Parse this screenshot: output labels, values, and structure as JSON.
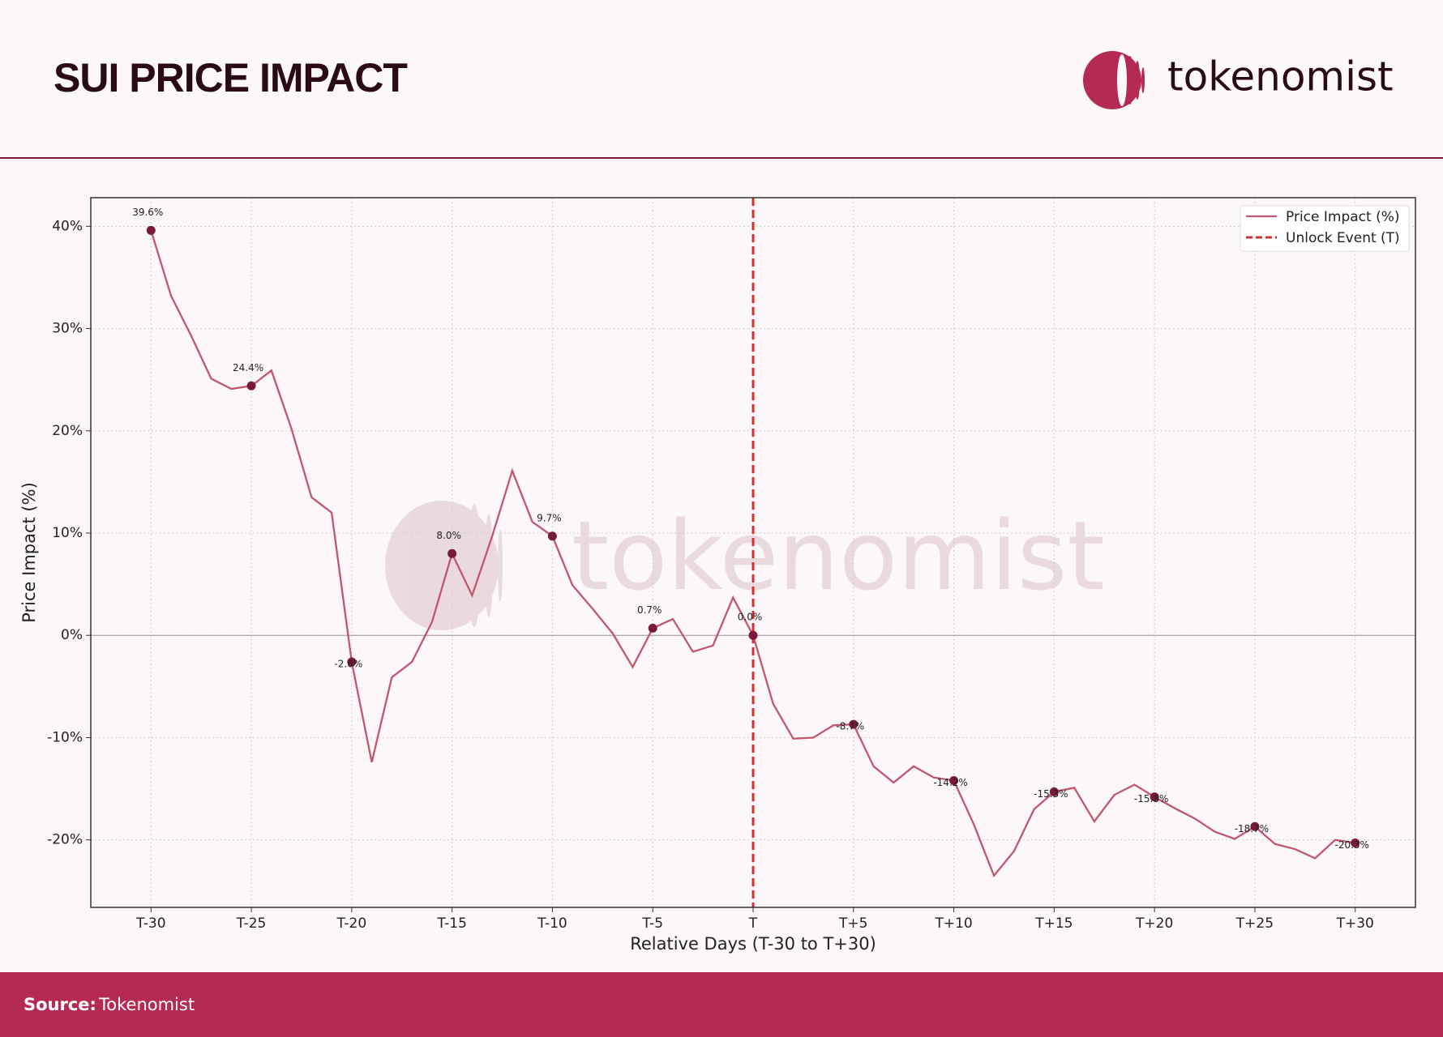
{
  "header": {
    "title": "SUI PRICE IMPACT",
    "logo": "tokenomist"
  },
  "footer": {
    "label": "Source:",
    "source": "Tokenomist"
  },
  "chart_data": {
    "type": "line",
    "watermark": "tokenomist",
    "x_label": "Relative Days (T-30 to T+30)",
    "y_label": "Price Impact (%)",
    "x": [
      -30,
      -29,
      -28,
      -27,
      -26,
      -25,
      -24,
      -23,
      -22,
      -21,
      -20,
      -19,
      -18,
      -17,
      -16,
      -15,
      -14,
      -13,
      -12,
      -11,
      -10,
      -9,
      -8,
      -7,
      -6,
      -5,
      -4,
      -3,
      -2,
      -1,
      0,
      1,
      2,
      3,
      4,
      5,
      6,
      7,
      8,
      9,
      10,
      11,
      12,
      13,
      14,
      15,
      16,
      17,
      18,
      19,
      20,
      21,
      22,
      23,
      24,
      25,
      26,
      27,
      28,
      29,
      30
    ],
    "series": [
      {
        "name": "Price Impact (%)",
        "color": "#c2566f",
        "marker_color": "#7a1a3a",
        "values": [
          39.6,
          33.2,
          29.3,
          25.1,
          24.1,
          24.4,
          25.9,
          20.2,
          13.5,
          12.0,
          -2.6,
          -12.4,
          -4.1,
          -2.6,
          1.3,
          8.0,
          3.9,
          9.7,
          16.1,
          11.1,
          9.7,
          4.9,
          2.6,
          0.2,
          -3.1,
          0.7,
          1.6,
          -1.6,
          -1.0,
          3.7,
          0.0,
          -6.7,
          -10.1,
          -10.0,
          -8.8,
          -8.7,
          -12.8,
          -14.4,
          -12.8,
          -13.9,
          -14.2,
          -18.5,
          -23.5,
          -21.1,
          -17.0,
          -15.3,
          -14.9,
          -18.2,
          -15.6,
          -14.6,
          -15.8,
          -16.9,
          -17.9,
          -19.2,
          -19.9,
          -18.7,
          -20.4,
          -20.9,
          -21.8,
          -20.0,
          -20.3
        ],
        "value_labels": [
          "39.6%",
          null,
          null,
          null,
          null,
          "24.4%",
          null,
          null,
          null,
          null,
          "-2.6%",
          null,
          null,
          null,
          null,
          "8.0%",
          null,
          null,
          null,
          null,
          "9.7%",
          null,
          null,
          null,
          null,
          "0.7%",
          null,
          null,
          null,
          null,
          "0.0%",
          null,
          null,
          null,
          null,
          "-8.7%",
          null,
          null,
          null,
          null,
          "-14.2%",
          null,
          null,
          null,
          null,
          "-15.3%",
          null,
          null,
          null,
          null,
          "-15.8%",
          null,
          null,
          null,
          null,
          "-18.7%",
          null,
          null,
          null,
          null,
          "-20.3%"
        ]
      }
    ],
    "vline": {
      "x": 0,
      "name": "Unlock Event (T)",
      "color": "#d32f2f"
    },
    "hline": 0,
    "xlim": [
      -33,
      33
    ],
    "ylim": [
      -26.6,
      42.8
    ],
    "xticks": [
      {
        "value": -30,
        "label": "T-30"
      },
      {
        "value": -25,
        "label": "T-25"
      },
      {
        "value": -20,
        "label": "T-20"
      },
      {
        "value": -15,
        "label": "T-15"
      },
      {
        "value": -10,
        "label": "T-10"
      },
      {
        "value": -5,
        "label": "T-5"
      },
      {
        "value": 0,
        "label": "T"
      },
      {
        "value": 5,
        "label": "T+5"
      },
      {
        "value": 10,
        "label": "T+10"
      },
      {
        "value": 15,
        "label": "T+15"
      },
      {
        "value": 20,
        "label": "T+20"
      },
      {
        "value": 25,
        "label": "T+25"
      },
      {
        "value": 30,
        "label": "T+30"
      }
    ],
    "yticks": [
      {
        "value": -20,
        "label": "-20%"
      },
      {
        "value": -10,
        "label": "-10%"
      },
      {
        "value": 0,
        "label": "0%"
      },
      {
        "value": 10,
        "label": "10%"
      },
      {
        "value": 20,
        "label": "20%"
      },
      {
        "value": 30,
        "label": "30%"
      },
      {
        "value": 40,
        "label": "40%"
      }
    ],
    "grid": true,
    "legend": "upper right"
  }
}
